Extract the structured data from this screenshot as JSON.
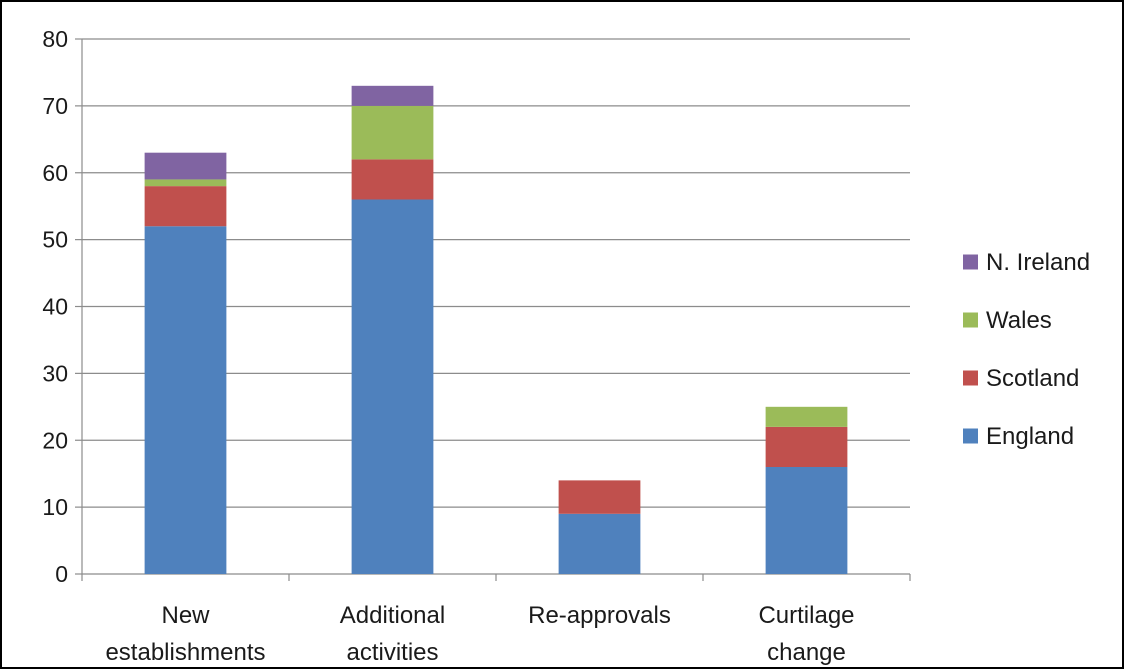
{
  "chart_data": {
    "type": "bar",
    "stacked": true,
    "title": "",
    "xlabel": "",
    "ylabel": "",
    "ylim": [
      0,
      80
    ],
    "yticks": [
      0,
      10,
      20,
      30,
      40,
      50,
      60,
      70,
      80
    ],
    "grid": true,
    "legend_position": "right",
    "categories": [
      [
        "New",
        "establishments"
      ],
      [
        "Additional",
        "activities"
      ],
      [
        "Re-approvals"
      ],
      [
        "Curtilage",
        "change"
      ]
    ],
    "series": [
      {
        "name": "England",
        "color": "#4f81bd",
        "values": [
          52,
          56,
          9,
          16
        ]
      },
      {
        "name": "Scotland",
        "color": "#c0504d",
        "values": [
          6,
          6,
          5,
          6
        ]
      },
      {
        "name": "Wales",
        "color": "#9bbb59",
        "values": [
          1,
          8,
          0,
          3
        ]
      },
      {
        "name": "N. Ireland",
        "color": "#8064a2",
        "values": [
          4,
          3,
          0,
          0
        ]
      }
    ]
  }
}
